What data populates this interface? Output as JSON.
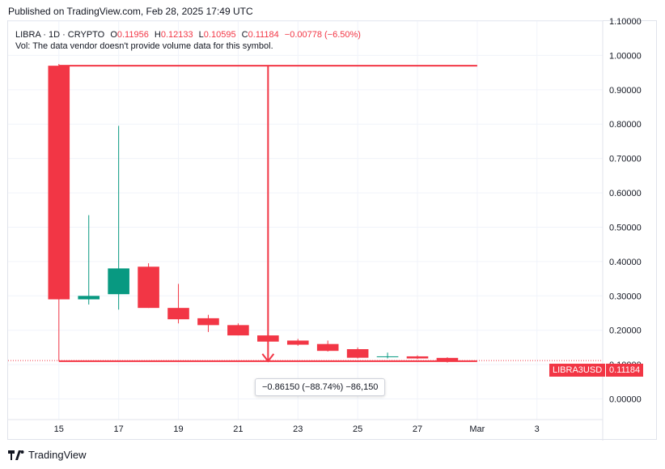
{
  "published_text": "Published on TradingView.com, Feb 28, 2025 17:49 UTC",
  "legend": {
    "symbol": "LIBRA · 1D · CRYPTO",
    "o_label": "O",
    "o_value": "0.11956",
    "h_label": "H",
    "h_value": "0.12133",
    "l_label": "L",
    "l_value": "0.10595",
    "c_label": "C",
    "c_value": "0.11184",
    "change": "−0.00778 (−6.50%)",
    "vol_text": "Vol: The data vendor doesn't provide volume data for this symbol."
  },
  "measure_label": "−0.86150 (−88.74%) −86,150",
  "price_tag": {
    "symbol": "LIBRA3USD",
    "value": "0.11184"
  },
  "footer_brand": "TradingView",
  "colors": {
    "up": "#089981",
    "down": "#f23645",
    "grid": "#f0f3fa",
    "axis_text": "#131722"
  },
  "chart_data": {
    "type": "candlestick",
    "ylim": [
      -0.06,
      1.1
    ],
    "y_ticks": [
      "1.10000",
      "1.00000",
      "0.90000",
      "0.80000",
      "0.70000",
      "0.60000",
      "0.50000",
      "0.40000",
      "0.30000",
      "0.20000",
      "0.10000",
      "0.00000"
    ],
    "y_tick_values": [
      1.1,
      1.0,
      0.9,
      0.8,
      0.7,
      0.6,
      0.5,
      0.4,
      0.3,
      0.2,
      0.1,
      0.0
    ],
    "x_ticks": [
      {
        "label": "15",
        "day": 15
      },
      {
        "label": "17",
        "day": 17
      },
      {
        "label": "19",
        "day": 19
      },
      {
        "label": "21",
        "day": 21
      },
      {
        "label": "23",
        "day": 23
      },
      {
        "label": "25",
        "day": 25
      },
      {
        "label": "27",
        "day": 27
      },
      {
        "label": "Mar",
        "day": 29
      },
      {
        "label": "3",
        "day": 31
      }
    ],
    "xlim": [
      13.3,
      33.2
    ],
    "candles": [
      {
        "day": 15,
        "open": 0.97,
        "high": 0.975,
        "low": 0.11,
        "close": 0.29
      },
      {
        "day": 16,
        "open": 0.29,
        "high": 0.535,
        "low": 0.275,
        "close": 0.3
      },
      {
        "day": 17,
        "open": 0.305,
        "high": 0.795,
        "low": 0.26,
        "close": 0.38
      },
      {
        "day": 18,
        "open": 0.385,
        "high": 0.395,
        "low": 0.265,
        "close": 0.265
      },
      {
        "day": 19,
        "open": 0.265,
        "high": 0.335,
        "low": 0.22,
        "close": 0.232
      },
      {
        "day": 20,
        "open": 0.235,
        "high": 0.245,
        "low": 0.195,
        "close": 0.215
      },
      {
        "day": 21,
        "open": 0.215,
        "high": 0.22,
        "low": 0.185,
        "close": 0.185
      },
      {
        "day": 22,
        "open": 0.185,
        "high": 0.19,
        "low": 0.165,
        "close": 0.167
      },
      {
        "day": 23,
        "open": 0.17,
        "high": 0.175,
        "low": 0.155,
        "close": 0.158
      },
      {
        "day": 24,
        "open": 0.16,
        "high": 0.17,
        "low": 0.138,
        "close": 0.14
      },
      {
        "day": 25,
        "open": 0.145,
        "high": 0.15,
        "low": 0.118,
        "close": 0.12
      },
      {
        "day": 26,
        "open": 0.122,
        "high": 0.135,
        "low": 0.118,
        "close": 0.124
      },
      {
        "day": 27,
        "open": 0.124,
        "high": 0.127,
        "low": 0.116,
        "close": 0.118
      },
      {
        "day": 28,
        "open": 0.11956,
        "high": 0.12133,
        "low": 0.10595,
        "close": 0.11184
      }
    ],
    "measure": {
      "from_day": 15,
      "to_day": 29,
      "from_price": 0.97,
      "to_price": 0.11
    }
  }
}
